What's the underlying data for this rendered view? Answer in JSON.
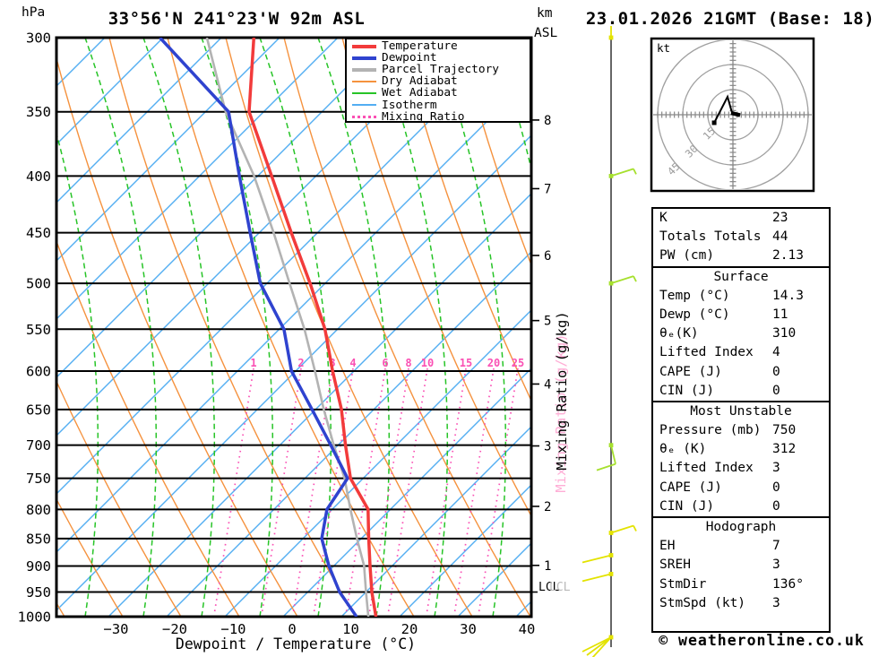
{
  "header": {
    "pressure_unit": "hPa",
    "title": "33°56'N 241°23'W 92m ASL",
    "km_unit": "km",
    "asl_unit": "ASL",
    "datetime": "23.01.2026 21GMT (Base: 18)"
  },
  "legend": {
    "items": [
      {
        "label": "Temperature",
        "color": "#f23b3b",
        "style": "thick"
      },
      {
        "label": "Dewpoint",
        "color": "#2f43cf",
        "style": "thick"
      },
      {
        "label": "Parcel Trajectory",
        "color": "#b3b3b3",
        "style": "thick"
      },
      {
        "label": "Dry Adiabat",
        "color": "#f5923e",
        "style": "thin"
      },
      {
        "label": "Wet Adiabat",
        "color": "#27c427",
        "style": "thin"
      },
      {
        "label": "Isotherm",
        "color": "#53aef2",
        "style": "thin"
      },
      {
        "label": "Mixing Ratio",
        "color": "#fa50b4",
        "style": "dotted"
      }
    ]
  },
  "axes": {
    "pressure_ticks": [
      300,
      350,
      400,
      450,
      500,
      550,
      600,
      650,
      700,
      750,
      800,
      850,
      900,
      950,
      1000
    ],
    "temp_ticks": [
      -30,
      -20,
      -10,
      0,
      10,
      20,
      30,
      40
    ],
    "temp_axis_label": "Dewpoint / Temperature (°C)",
    "km_ticks": [
      1,
      2,
      3,
      4,
      5,
      6,
      7,
      8
    ],
    "lcl_label": "LCL",
    "mixing_axis_label": "Mixing Ratio (g/kg)",
    "mixing_ratio_values": [
      1,
      2,
      3,
      4,
      6,
      8,
      10,
      15,
      20,
      25
    ]
  },
  "chart_data": {
    "type": "skewt-sounding",
    "title": "33°56'N 241°23'W 92m ASL",
    "valid": "23.01.2026 21GMT (Base: 18)",
    "pressure_range_hPa": [
      300,
      1000
    ],
    "temp_range_C": [
      -40,
      43
    ],
    "lcl_pressure_hPa": 950,
    "pressure_levels_hPa": [
      300,
      350,
      400,
      450,
      500,
      550,
      600,
      650,
      700,
      750,
      800,
      850,
      900,
      950,
      1000
    ],
    "series": [
      {
        "name": "Temperature",
        "color": "#f23b3b",
        "width": 3.5,
        "values_C": [
          -44,
          -40,
          -32,
          -25,
          -18.5,
          -13,
          -9,
          -5,
          -2,
          1,
          6,
          8,
          10,
          12,
          14.3
        ]
      },
      {
        "name": "Dewpoint",
        "color": "#2f43cf",
        "width": 3.5,
        "values_C": [
          -60,
          -43.5,
          -37.5,
          -32,
          -27,
          -20,
          -16,
          -10,
          -4.5,
          0.5,
          -1,
          0,
          3,
          6.5,
          11
        ]
      },
      {
        "name": "Parcel Trajectory",
        "color": "#b3b3b3",
        "width": 2.6,
        "values_C": [
          -52,
          -44,
          -35,
          -28,
          -22,
          -16.5,
          -12,
          -8,
          -4,
          0,
          3,
          6,
          9,
          11,
          13
        ]
      }
    ],
    "wind_barbs": [
      {
        "level_hPa": 300,
        "color": "yellow",
        "shape": "stub"
      },
      {
        "level_hPa": 400,
        "color": "green",
        "shape": "barb-ne"
      },
      {
        "level_hPa": 500,
        "color": "green",
        "shape": "barb-ne"
      },
      {
        "level_hPa": 700,
        "color": "green",
        "shape": "hook-sw"
      },
      {
        "level_hPa": 840,
        "color": "yellow",
        "shape": "barb-ne"
      },
      {
        "level_hPa": 880,
        "color": "yellow",
        "shape": "barb-w"
      },
      {
        "level_hPa": 915,
        "color": "yellow",
        "shape": "barb-w"
      },
      {
        "level_hPa": 1045,
        "color": "yellow",
        "shape": "fan-sw"
      }
    ]
  },
  "hodograph": {
    "unit_label": "kt",
    "ring_labels": [
      "15",
      "30",
      "45"
    ],
    "ring_radii_kt": [
      15,
      30,
      45
    ],
    "trace_uv_kt": [
      [
        -11.2,
        -4.8
      ],
      [
        -3.2,
        10.7
      ],
      [
        -0.5,
        1.0
      ]
    ]
  },
  "indices": {
    "sections": [
      {
        "title": "",
        "rows": [
          [
            "K",
            "23"
          ],
          [
            "Totals Totals",
            "44"
          ],
          [
            "PW (cm)",
            "2.13"
          ]
        ]
      },
      {
        "title": "Surface",
        "rows": [
          [
            "Temp (°C)",
            "14.3"
          ],
          [
            "Dewp (°C)",
            "11"
          ],
          [
            "θₑ(K)",
            "310"
          ],
          [
            "Lifted Index",
            "4"
          ],
          [
            "CAPE (J)",
            "0"
          ],
          [
            "CIN (J)",
            "0"
          ]
        ]
      },
      {
        "title": "Most Unstable",
        "rows": [
          [
            "Pressure (mb)",
            "750"
          ],
          [
            "θₑ (K)",
            "312"
          ],
          [
            "Lifted Index",
            "3"
          ],
          [
            "CAPE (J)",
            "0"
          ],
          [
            "CIN (J)",
            "0"
          ]
        ]
      },
      {
        "title": "Hodograph",
        "rows": [
          [
            "EH",
            "7"
          ],
          [
            "SREH",
            "3"
          ],
          [
            "StmDir",
            "136°"
          ],
          [
            "StmSpd (kt)",
            "3"
          ]
        ]
      }
    ]
  },
  "footer": {
    "copyright": "© weatheronline.co.uk"
  },
  "colors": {
    "isotherm": "#53aef2",
    "dry_adiabat": "#f5923e",
    "wet_adiabat": "#27c427",
    "mixing_ratio": "#fa50b4",
    "temperature": "#f23b3b",
    "dewpoint": "#2f43cf",
    "parcel": "#b3b3b3",
    "grid": "#000000",
    "barb_yellow": "#e3e300",
    "barb_green": "#a6e02e",
    "staff_gray": "#666666",
    "hodo_gray": "#a0a0a0"
  }
}
